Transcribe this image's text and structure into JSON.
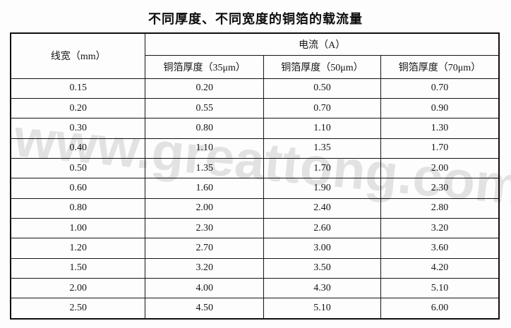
{
  "title": "不同厚度、不同宽度的铜箔的载流量",
  "watermark": "www.greattong.com",
  "table": {
    "col_width_header": "线宽（mm）",
    "group_header": "电流（A）",
    "sub_headers": [
      "铜箔厚度（35μm）",
      "铜箔厚度（50μm）",
      "铜箔厚度（70μm）"
    ],
    "rows": [
      [
        "0.15",
        "0.20",
        "0.50",
        "0.70"
      ],
      [
        "0.20",
        "0.55",
        "0.70",
        "0.90"
      ],
      [
        "0.30",
        "0.80",
        "1.10",
        "1.30"
      ],
      [
        "0.40",
        "1.10",
        "1.35",
        "1.70"
      ],
      [
        "0.50",
        "1.35",
        "1.70",
        "2.00"
      ],
      [
        "0.60",
        "1.60",
        "1.90",
        "2.30"
      ],
      [
        "0.80",
        "2.00",
        "2.40",
        "2.80"
      ],
      [
        "1.00",
        "2.30",
        "2.60",
        "3.20"
      ],
      [
        "1.20",
        "2.70",
        "3.00",
        "3.60"
      ],
      [
        "1.50",
        "3.20",
        "3.50",
        "4.20"
      ],
      [
        "2.00",
        "4.00",
        "4.30",
        "5.10"
      ],
      [
        "2.50",
        "4.50",
        "5.10",
        "6.00"
      ]
    ]
  },
  "colors": {
    "border": "#141414",
    "text": "#161616",
    "background": "#fdfdfd",
    "watermark_gray": "#e5e5e5"
  }
}
